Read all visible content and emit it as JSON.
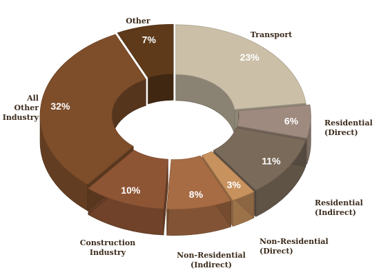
{
  "chart_data": {
    "type": "pie",
    "variant": "exploded 3D donut",
    "title": "",
    "legend": "none (labels placed beside slices)",
    "slices": [
      {
        "label": [
          "Transport"
        ],
        "value": 23,
        "value_label": "23%",
        "color": "#cbbfa8"
      },
      {
        "label": [
          "Residential",
          "(Direct)"
        ],
        "value": 6,
        "value_label": "6%",
        "color": "#9e8a7e"
      },
      {
        "label": [
          "Residential",
          "(Indirect)"
        ],
        "value": 11,
        "value_label": "11%",
        "color": "#7a6a5a"
      },
      {
        "label": [
          "Non-Residential",
          "(Direct)"
        ],
        "value": 3,
        "value_label": "3%",
        "color": "#c8925e"
      },
      {
        "label": [
          "Non-Residential",
          "(Indirect)"
        ],
        "value": 8,
        "value_label": "8%",
        "color": "#a76c44"
      },
      {
        "label": [
          "Construction",
          "Industry"
        ],
        "value": 10,
        "value_label": "10%",
        "color": "#8e5535"
      },
      {
        "label": [
          "All",
          "Other",
          "Industry"
        ],
        "value": 32,
        "value_label": "32%",
        "color": "#7e4e2b"
      },
      {
        "label": [
          "Other"
        ],
        "value": 7,
        "value_label": "7%",
        "color": "#5e3a1a"
      }
    ]
  }
}
